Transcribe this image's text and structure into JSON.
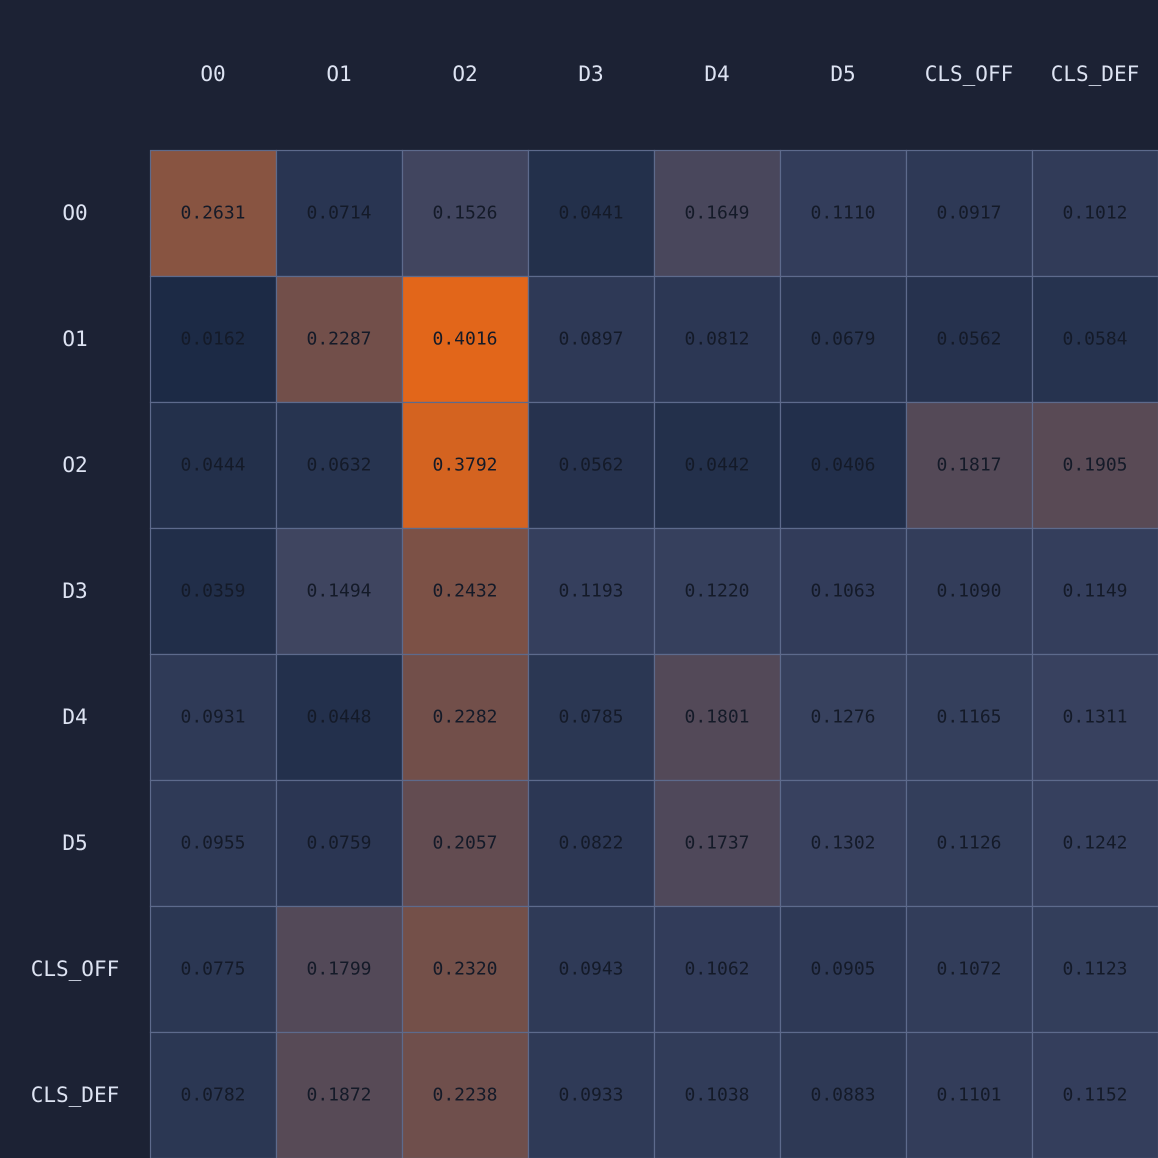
{
  "colors": {
    "background": "#1c2234",
    "label_text": "#dde3f2",
    "cell_text": "#141a28",
    "grid_line": "#5d6a8c",
    "scale_low": "#1c2a45",
    "scale_mid": "#3b4462",
    "scale_high": "#e2661a"
  },
  "chart_data": {
    "type": "heatmap",
    "title": "",
    "xlabel": "",
    "ylabel": "",
    "x_labels": [
      "O0",
      "O1",
      "O2",
      "D3",
      "D4",
      "D5",
      "CLS_OFF",
      "CLS_DEF"
    ],
    "y_labels": [
      "O0",
      "O1",
      "O2",
      "D3",
      "D4",
      "D5",
      "CLS_OFF",
      "CLS_DEF"
    ],
    "values": [
      [
        0.2631,
        0.0714,
        0.1526,
        0.0441,
        0.1649,
        0.111,
        0.0917,
        0.1012
      ],
      [
        0.0162,
        0.2287,
        0.4016,
        0.0897,
        0.0812,
        0.0679,
        0.0562,
        0.0584
      ],
      [
        0.0444,
        0.0632,
        0.3792,
        0.0562,
        0.0442,
        0.0406,
        0.1817,
        0.1905
      ],
      [
        0.0359,
        0.1494,
        0.2432,
        0.1193,
        0.122,
        0.1063,
        0.109,
        0.1149
      ],
      [
        0.0931,
        0.0448,
        0.2282,
        0.0785,
        0.1801,
        0.1276,
        0.1165,
        0.1311
      ],
      [
        0.0955,
        0.0759,
        0.2057,
        0.0822,
        0.1737,
        0.1302,
        0.1126,
        0.1242
      ],
      [
        0.0775,
        0.1799,
        0.232,
        0.0943,
        0.1062,
        0.0905,
        0.1072,
        0.1123
      ],
      [
        0.0782,
        0.1872,
        0.2238,
        0.0933,
        0.1038,
        0.0883,
        0.1101,
        0.1152
      ]
    ],
    "value_labels": [
      [
        "0.2631",
        "0.0714",
        "0.1526",
        "0.0441",
        "0.1649",
        "0.1110",
        "0.0917",
        "0.1012"
      ],
      [
        "0.0162",
        "0.2287",
        "0.4016",
        "0.0897",
        "0.0812",
        "0.0679",
        "0.0562",
        "0.0584"
      ],
      [
        "0.0444",
        "0.0632",
        "0.3792",
        "0.0562",
        "0.0442",
        "0.0406",
        "0.1817",
        "0.1905"
      ],
      [
        "0.0359",
        "0.1494",
        "0.2432",
        "0.1193",
        "0.1220",
        "0.1063",
        "0.1090",
        "0.1149"
      ],
      [
        "0.0931",
        "0.0448",
        "0.2282",
        "0.0785",
        "0.1801",
        "0.1276",
        "0.1165",
        "0.1311"
      ],
      [
        "0.0955",
        "0.0759",
        "0.2057",
        "0.0822",
        "0.1737",
        "0.1302",
        "0.1126",
        "0.1242"
      ],
      [
        "0.0775",
        "0.1799",
        "0.2320",
        "0.0943",
        "0.1062",
        "0.0905",
        "0.1072",
        "0.1123"
      ],
      [
        "0.0782",
        "0.1872",
        "0.2238",
        "0.0933",
        "0.1038",
        "0.0883",
        "0.1101",
        "0.1152"
      ]
    ],
    "value_range": [
      0.0162,
      0.4016
    ],
    "legend": "none",
    "grid": true
  }
}
